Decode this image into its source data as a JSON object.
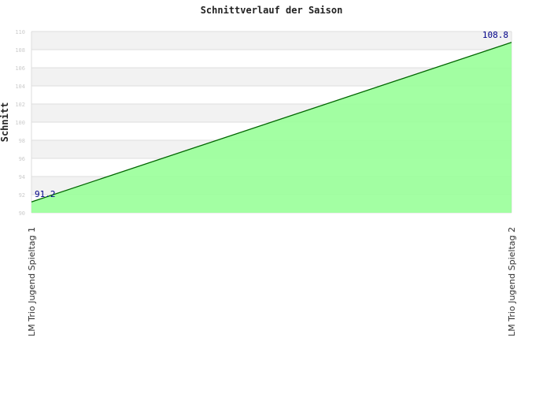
{
  "chart_data": {
    "type": "area",
    "title": "Schnittverlauf der Saison",
    "xlabel": "",
    "ylabel": "Schnitt",
    "categories": [
      "LM Trio Jugend Spieltag 1",
      "LM Trio Jugend Spieltag 2"
    ],
    "values": [
      91.2,
      108.8
    ],
    "data_labels": [
      "91.2",
      "108.8"
    ],
    "ylim": [
      90,
      110
    ],
    "yticks": [
      90,
      92,
      94,
      96,
      98,
      100,
      102,
      104,
      106,
      108,
      110
    ],
    "grid": true,
    "colors": {
      "fill": "#99ff99",
      "line": "#006600",
      "label": "#000088",
      "band": "#f2f2f2",
      "grid": "#dddddd",
      "tick": "#cccccc"
    }
  }
}
